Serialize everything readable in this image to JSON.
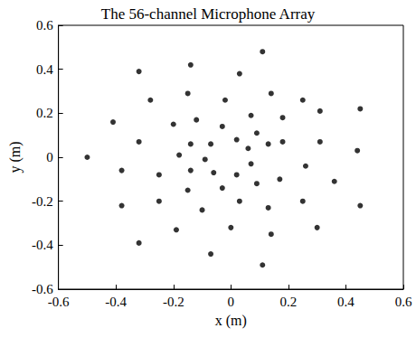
{
  "chart_data": {
    "type": "scatter",
    "title": "The 56-channel Microphone Array",
    "x_label": "x (m)",
    "y_label": "y (m)",
    "xlim": [
      -0.6,
      0.6
    ],
    "xticks": [
      -0.6,
      -0.4,
      -0.2,
      0,
      0.2,
      0.4,
      0.6
    ],
    "ylim": [
      -0.6,
      0.6
    ],
    "yticks": [
      -0.6,
      -0.4,
      -0.2,
      0,
      0.2,
      0.4,
      0.6
    ],
    "grid": false,
    "color": "#000000",
    "marker": "circle",
    "x": [
      -0.5,
      -0.41,
      -0.38,
      -0.38,
      -0.32,
      -0.32,
      -0.32,
      -0.28,
      -0.25,
      -0.25,
      -0.2,
      -0.18,
      -0.19,
      -0.14,
      -0.15,
      -0.14,
      -0.14,
      -0.15,
      -0.12,
      -0.1,
      -0.09,
      -0.07,
      -0.06,
      -0.07,
      -0.03,
      -0.03,
      -0.02,
      0.0,
      0.02,
      0.02,
      0.03,
      0.03,
      0.06,
      0.07,
      0.07,
      0.09,
      0.09,
      0.11,
      0.11,
      0.13,
      0.13,
      0.14,
      0.14,
      0.17,
      0.18,
      0.18,
      0.25,
      0.25,
      0.26,
      0.3,
      0.31,
      0.31,
      0.36,
      0.44,
      0.45,
      0.45
    ],
    "y": [
      0.0,
      0.16,
      -0.06,
      -0.22,
      0.39,
      0.07,
      -0.39,
      0.26,
      -0.08,
      -0.2,
      0.15,
      0.01,
      -0.33,
      0.42,
      0.29,
      0.06,
      -0.06,
      -0.15,
      0.17,
      -0.24,
      -0.01,
      0.06,
      -0.07,
      -0.44,
      0.14,
      -0.14,
      0.26,
      -0.32,
      0.08,
      -0.08,
      0.38,
      -0.2,
      0.04,
      -0.03,
      0.19,
      0.11,
      -0.12,
      0.48,
      -0.49,
      0.06,
      -0.23,
      0.29,
      -0.35,
      -0.1,
      0.18,
      0.07,
      0.26,
      -0.2,
      -0.04,
      -0.32,
      0.21,
      0.07,
      -0.11,
      0.03,
      0.22,
      -0.22
    ]
  }
}
